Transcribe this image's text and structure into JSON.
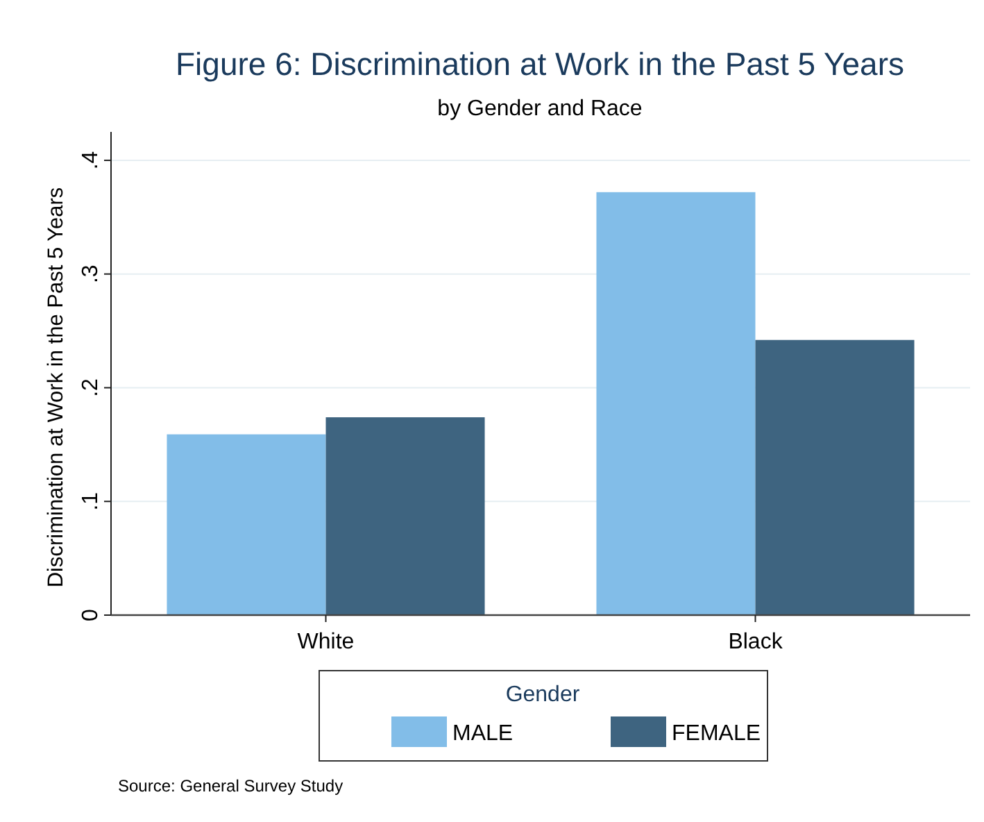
{
  "chart_data": {
    "type": "bar",
    "title": "Figure 6: Discrimination at Work in the Past 5 Years",
    "subtitle": "by Gender and Race",
    "ylabel": "Discrimination at Work in the Past 5 Years",
    "legend_title": "Gender",
    "categories": [
      "White",
      "Black"
    ],
    "series": [
      {
        "name": "MALE",
        "color": "#82bde8",
        "values": [
          0.159,
          0.372
        ]
      },
      {
        "name": "FEMALE",
        "color": "#3e6480",
        "values": [
          0.174,
          0.242
        ]
      }
    ],
    "ylim": [
      0,
      0.425
    ],
    "yticks": [
      0,
      {
        "value": 0.1,
        "label": ".1"
      },
      {
        "value": 0.2,
        "label": ".2"
      },
      {
        "value": 0.3,
        "label": ".3"
      },
      {
        "value": 0.4,
        "label": ".4"
      }
    ],
    "grid": "y",
    "legend": "bottom",
    "annotations": [
      "Source: General Survey Study"
    ]
  }
}
